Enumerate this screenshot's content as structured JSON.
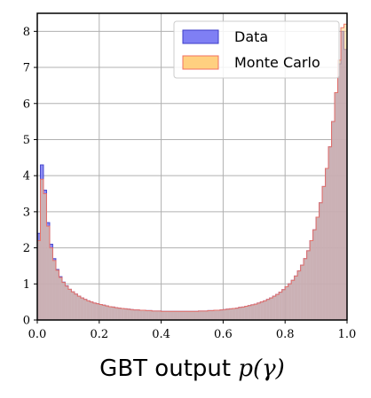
{
  "chart_data": {
    "type": "area",
    "xlabel_text": "GBT output ",
    "xlabel_math": "p(γ)",
    "xlim": [
      0.0,
      1.0
    ],
    "ylim": [
      0,
      8.5
    ],
    "x_ticks": [
      "0.0",
      "0.2",
      "0.4",
      "0.6",
      "0.8",
      "1.0"
    ],
    "y_ticks": [
      "0",
      "1",
      "2",
      "3",
      "4",
      "5",
      "6",
      "7",
      "8"
    ],
    "grid": true,
    "legend_position": "top-right",
    "bins": 100,
    "series": [
      {
        "name": "Data",
        "fill": "#7f7ff4",
        "edge": "#3c3cc8",
        "x": [
          0.005,
          0.015,
          0.025,
          0.035,
          0.045,
          0.055,
          0.065,
          0.075,
          0.085,
          0.095,
          0.105,
          0.115,
          0.125,
          0.135,
          0.145,
          0.155,
          0.165,
          0.175,
          0.185,
          0.195,
          0.205,
          0.215,
          0.225,
          0.235,
          0.245,
          0.255,
          0.265,
          0.275,
          0.285,
          0.295,
          0.305,
          0.315,
          0.325,
          0.335,
          0.345,
          0.355,
          0.365,
          0.375,
          0.385,
          0.395,
          0.405,
          0.415,
          0.425,
          0.435,
          0.445,
          0.455,
          0.465,
          0.475,
          0.485,
          0.495,
          0.505,
          0.515,
          0.525,
          0.535,
          0.545,
          0.555,
          0.565,
          0.575,
          0.585,
          0.595,
          0.605,
          0.615,
          0.625,
          0.635,
          0.645,
          0.655,
          0.665,
          0.675,
          0.685,
          0.695,
          0.705,
          0.715,
          0.725,
          0.735,
          0.745,
          0.755,
          0.765,
          0.775,
          0.785,
          0.795,
          0.805,
          0.815,
          0.825,
          0.835,
          0.845,
          0.855,
          0.865,
          0.875,
          0.885,
          0.895,
          0.905,
          0.915,
          0.925,
          0.935,
          0.945,
          0.955,
          0.965,
          0.975,
          0.985,
          0.995
        ],
        "values": [
          2.4,
          4.3,
          3.6,
          2.7,
          2.1,
          1.7,
          1.4,
          1.2,
          1.05,
          0.95,
          0.85,
          0.78,
          0.72,
          0.66,
          0.61,
          0.57,
          0.53,
          0.5,
          0.47,
          0.45,
          0.43,
          0.41,
          0.39,
          0.37,
          0.36,
          0.34,
          0.33,
          0.32,
          0.31,
          0.3,
          0.29,
          0.28,
          0.28,
          0.27,
          0.27,
          0.26,
          0.26,
          0.25,
          0.25,
          0.25,
          0.24,
          0.24,
          0.24,
          0.24,
          0.24,
          0.24,
          0.24,
          0.24,
          0.24,
          0.24,
          0.24,
          0.24,
          0.25,
          0.25,
          0.25,
          0.26,
          0.26,
          0.27,
          0.27,
          0.28,
          0.29,
          0.3,
          0.31,
          0.32,
          0.33,
          0.35,
          0.36,
          0.38,
          0.4,
          0.42,
          0.44,
          0.47,
          0.5,
          0.53,
          0.57,
          0.61,
          0.66,
          0.71,
          0.77,
          0.84,
          0.92,
          1.0,
          1.1,
          1.22,
          1.36,
          1.52,
          1.7,
          1.92,
          2.2,
          2.5,
          2.85,
          3.25,
          3.7,
          4.2,
          4.8,
          5.5,
          6.3,
          7.1,
          8.0,
          7.5
        ]
      },
      {
        "name": "Monte Carlo",
        "fill": "#ffd080",
        "edge": "#f07060",
        "x": [
          0.005,
          0.015,
          0.025,
          0.035,
          0.045,
          0.055,
          0.065,
          0.075,
          0.085,
          0.095,
          0.105,
          0.115,
          0.125,
          0.135,
          0.145,
          0.155,
          0.165,
          0.175,
          0.185,
          0.195,
          0.205,
          0.215,
          0.225,
          0.235,
          0.245,
          0.255,
          0.265,
          0.275,
          0.285,
          0.295,
          0.305,
          0.315,
          0.325,
          0.335,
          0.345,
          0.355,
          0.365,
          0.375,
          0.385,
          0.395,
          0.405,
          0.415,
          0.425,
          0.435,
          0.445,
          0.455,
          0.465,
          0.475,
          0.485,
          0.495,
          0.505,
          0.515,
          0.525,
          0.535,
          0.545,
          0.555,
          0.565,
          0.575,
          0.585,
          0.595,
          0.605,
          0.615,
          0.625,
          0.635,
          0.645,
          0.655,
          0.665,
          0.675,
          0.685,
          0.695,
          0.705,
          0.715,
          0.725,
          0.735,
          0.745,
          0.755,
          0.765,
          0.775,
          0.785,
          0.795,
          0.805,
          0.815,
          0.825,
          0.835,
          0.845,
          0.855,
          0.865,
          0.875,
          0.885,
          0.895,
          0.905,
          0.915,
          0.925,
          0.935,
          0.945,
          0.955,
          0.965,
          0.975,
          0.985,
          0.995
        ],
        "values": [
          2.2,
          3.9,
          3.5,
          2.6,
          2.0,
          1.65,
          1.38,
          1.18,
          1.04,
          0.94,
          0.85,
          0.78,
          0.72,
          0.66,
          0.61,
          0.57,
          0.53,
          0.5,
          0.47,
          0.45,
          0.43,
          0.41,
          0.39,
          0.37,
          0.36,
          0.34,
          0.33,
          0.32,
          0.31,
          0.3,
          0.29,
          0.28,
          0.28,
          0.27,
          0.27,
          0.26,
          0.26,
          0.25,
          0.25,
          0.25,
          0.24,
          0.24,
          0.24,
          0.24,
          0.24,
          0.24,
          0.24,
          0.24,
          0.24,
          0.24,
          0.24,
          0.24,
          0.25,
          0.25,
          0.25,
          0.26,
          0.26,
          0.27,
          0.27,
          0.28,
          0.29,
          0.3,
          0.31,
          0.32,
          0.33,
          0.35,
          0.36,
          0.38,
          0.4,
          0.42,
          0.44,
          0.47,
          0.5,
          0.53,
          0.57,
          0.61,
          0.66,
          0.71,
          0.77,
          0.84,
          0.92,
          1.0,
          1.1,
          1.22,
          1.36,
          1.52,
          1.7,
          1.92,
          2.2,
          2.5,
          2.85,
          3.25,
          3.7,
          4.2,
          4.8,
          5.5,
          6.3,
          7.2,
          8.1,
          8.2
        ]
      }
    ]
  }
}
